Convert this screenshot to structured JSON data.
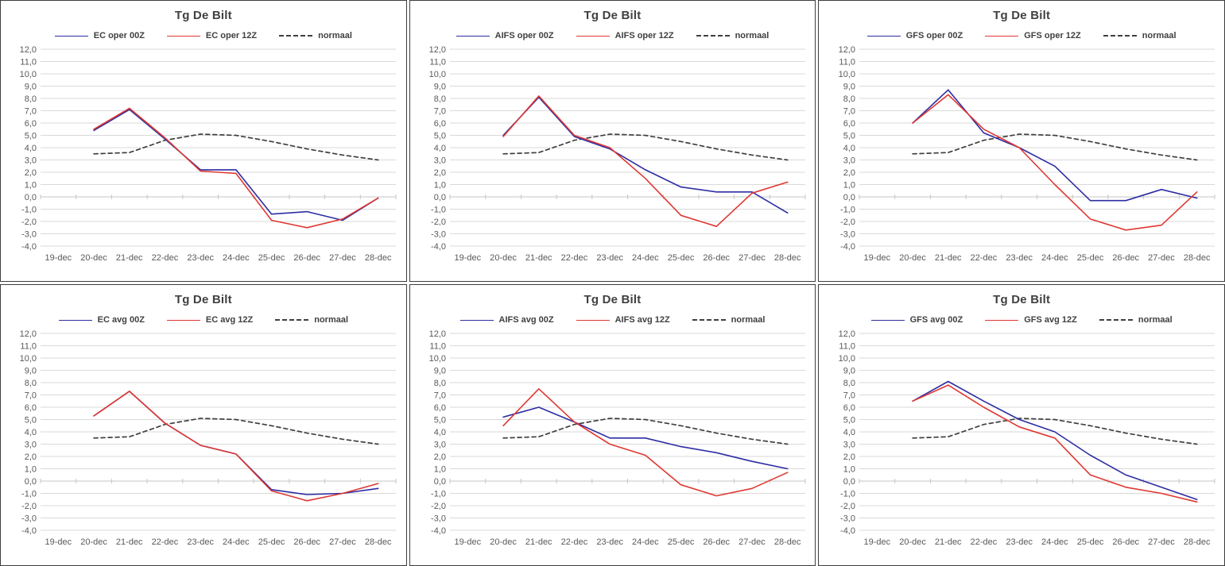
{
  "colors": {
    "series_00z": "#2D2DA3",
    "series_12z": "#DF3832",
    "normaal": "#404040",
    "gridline": "#D9D9D9",
    "zero_line": "#C6C6C6",
    "tick_text": "#595959",
    "title_text": "#404040",
    "panel_border": "#3D3D3D"
  },
  "chart_data": [
    {
      "id": "ec-oper",
      "type": "line",
      "title": "Tg De Bilt",
      "categories": [
        "19-dec",
        "20-dec",
        "21-dec",
        "22-dec",
        "23-dec",
        "24-dec",
        "25-dec",
        "26-dec",
        "27-dec",
        "28-dec"
      ],
      "ylim": [
        -4,
        12
      ],
      "ytick_step": 1.0,
      "grid": true,
      "legend_position": "top",
      "ytick_labels": [
        "12,0",
        "11,0",
        "10,0",
        "9,0",
        "8,0",
        "7,0",
        "6,0",
        "5,0",
        "4,0",
        "3,0",
        "2,0",
        "1,0",
        "0,0",
        "-1,0",
        "-2,0",
        "-3,0",
        "-4,0"
      ],
      "series": [
        {
          "name": "EC oper 00Z",
          "color": "#2D2DA3",
          "dash": false,
          "values": [
            null,
            5.4,
            7.1,
            4.7,
            2.2,
            2.2,
            -1.4,
            -1.2,
            -1.9,
            -0.1
          ]
        },
        {
          "name": "EC oper 12Z",
          "color": "#DF3832",
          "dash": false,
          "values": [
            null,
            5.5,
            7.2,
            4.8,
            2.1,
            1.9,
            -1.9,
            -2.5,
            -1.8,
            -0.1
          ]
        },
        {
          "name": "normaal",
          "color": "#404040",
          "dash": true,
          "values": [
            null,
            3.5,
            3.6,
            4.6,
            5.1,
            5.0,
            4.5,
            3.9,
            3.4,
            3.0
          ]
        }
      ]
    },
    {
      "id": "aifs-oper",
      "type": "line",
      "title": "Tg De Bilt",
      "categories": [
        "19-dec",
        "20-dec",
        "21-dec",
        "22-dec",
        "23-dec",
        "24-dec",
        "25-dec",
        "26-dec",
        "27-dec",
        "28-dec"
      ],
      "ylim": [
        -4,
        12
      ],
      "ytick_step": 1.0,
      "grid": true,
      "legend_position": "top",
      "ytick_labels": [
        "12,0",
        "11,0",
        "10,0",
        "9,0",
        "8,0",
        "7,0",
        "6,0",
        "5,0",
        "4,0",
        "3,0",
        "2,0",
        "1,0",
        "0,0",
        "-1,0",
        "-2,0",
        "-3,0",
        "-4,0"
      ],
      "series": [
        {
          "name": "AIFS oper 00Z",
          "color": "#2D2DA3",
          "dash": false,
          "values": [
            null,
            5.0,
            8.1,
            4.9,
            3.9,
            2.2,
            0.8,
            0.4,
            0.4,
            -1.3
          ]
        },
        {
          "name": "AIFS oper 12Z",
          "color": "#DF3832",
          "dash": false,
          "values": [
            null,
            4.9,
            8.2,
            5.0,
            4.0,
            1.5,
            -1.5,
            -2.4,
            0.3,
            1.2
          ]
        },
        {
          "name": "normaal",
          "color": "#404040",
          "dash": true,
          "values": [
            null,
            3.5,
            3.6,
            4.6,
            5.1,
            5.0,
            4.5,
            3.9,
            3.4,
            3.0
          ]
        }
      ]
    },
    {
      "id": "gfs-oper",
      "type": "line",
      "title": "Tg De Bilt",
      "categories": [
        "19-dec",
        "20-dec",
        "21-dec",
        "22-dec",
        "23-dec",
        "24-dec",
        "25-dec",
        "26-dec",
        "27-dec",
        "28-dec"
      ],
      "ylim": [
        -4,
        12
      ],
      "ytick_step": 1.0,
      "grid": true,
      "legend_position": "top",
      "ytick_labels": [
        "12,0",
        "11,0",
        "10,0",
        "9,0",
        "8,0",
        "7,0",
        "6,0",
        "5,0",
        "4,0",
        "3,0",
        "2,0",
        "1,0",
        "0,0",
        "-1,0",
        "-2,0",
        "-3,0",
        "-4,0"
      ],
      "series": [
        {
          "name": "GFS oper 00Z",
          "color": "#2D2DA3",
          "dash": false,
          "values": [
            null,
            6.0,
            8.7,
            5.2,
            4.0,
            2.5,
            -0.3,
            -0.3,
            0.6,
            -0.1
          ]
        },
        {
          "name": "GFS oper 12Z",
          "color": "#DF3832",
          "dash": false,
          "values": [
            null,
            6.0,
            8.3,
            5.5,
            4.0,
            1.0,
            -1.8,
            -2.7,
            -2.3,
            0.4
          ]
        },
        {
          "name": "normaal",
          "color": "#404040",
          "dash": true,
          "values": [
            null,
            3.5,
            3.6,
            4.6,
            5.1,
            5.0,
            4.5,
            3.9,
            3.4,
            3.0
          ]
        }
      ]
    },
    {
      "id": "ec-avg",
      "type": "line",
      "title": "Tg De Bilt",
      "categories": [
        "19-dec",
        "20-dec",
        "21-dec",
        "22-dec",
        "23-dec",
        "24-dec",
        "25-dec",
        "26-dec",
        "27-dec",
        "28-dec"
      ],
      "ylim": [
        -4,
        12
      ],
      "ytick_step": 1.0,
      "grid": true,
      "legend_position": "top",
      "ytick_labels": [
        "12,0",
        "11,0",
        "10,0",
        "9,0",
        "8,0",
        "7,0",
        "6,0",
        "5,0",
        "4,0",
        "3,0",
        "2,0",
        "1,0",
        "0,0",
        "-1,0",
        "-2,0",
        "-3,0",
        "-4,0"
      ],
      "series": [
        {
          "name": "EC avg 00Z",
          "color": "#2D2DA3",
          "dash": false,
          "values": [
            null,
            5.3,
            7.3,
            4.7,
            2.9,
            2.2,
            -0.7,
            -1.1,
            -1.0,
            -0.6
          ]
        },
        {
          "name": "EC avg 12Z",
          "color": "#DF3832",
          "dash": false,
          "values": [
            null,
            5.3,
            7.3,
            4.7,
            2.9,
            2.2,
            -0.8,
            -1.6,
            -1.0,
            -0.2
          ]
        },
        {
          "name": "normaal",
          "color": "#404040",
          "dash": true,
          "values": [
            null,
            3.5,
            3.6,
            4.6,
            5.1,
            5.0,
            4.5,
            3.9,
            3.4,
            3.0
          ]
        }
      ]
    },
    {
      "id": "aifs-avg",
      "type": "line",
      "title": "Tg De Bilt",
      "categories": [
        "19-dec",
        "20-dec",
        "21-dec",
        "22-dec",
        "23-dec",
        "24-dec",
        "25-dec",
        "26-dec",
        "27-dec",
        "28-dec"
      ],
      "ylim": [
        -4,
        12
      ],
      "ytick_step": 1.0,
      "grid": true,
      "legend_position": "top",
      "ytick_labels": [
        "12,0",
        "11,0",
        "10,0",
        "9,0",
        "8,0",
        "7,0",
        "6,0",
        "5,0",
        "4,0",
        "3,0",
        "2,0",
        "1,0",
        "0,0",
        "-1,0",
        "-2,0",
        "-3,0",
        "-4,0"
      ],
      "series": [
        {
          "name": "AIFS avg 00Z",
          "color": "#2D2DA3",
          "dash": false,
          "values": [
            null,
            5.2,
            6.0,
            4.8,
            3.5,
            3.5,
            2.8,
            2.3,
            1.6,
            1.0
          ]
        },
        {
          "name": "AIFS avg 12Z",
          "color": "#DF3832",
          "dash": false,
          "values": [
            null,
            4.5,
            7.5,
            4.8,
            3.0,
            2.1,
            -0.3,
            -1.2,
            -0.6,
            0.7
          ]
        },
        {
          "name": "normaal",
          "color": "#404040",
          "dash": true,
          "values": [
            null,
            3.5,
            3.6,
            4.6,
            5.1,
            5.0,
            4.5,
            3.9,
            3.4,
            3.0
          ]
        }
      ]
    },
    {
      "id": "gfs-avg",
      "type": "line",
      "title": "Tg De Bilt",
      "categories": [
        "19-dec",
        "20-dec",
        "21-dec",
        "22-dec",
        "23-dec",
        "24-dec",
        "25-dec",
        "26-dec",
        "27-dec",
        "28-dec"
      ],
      "ylim": [
        -4,
        12
      ],
      "ytick_step": 1.0,
      "grid": true,
      "legend_position": "top",
      "ytick_labels": [
        "12,0",
        "11,0",
        "10,0",
        "9,0",
        "8,0",
        "7,0",
        "6,0",
        "5,0",
        "4,0",
        "3,0",
        "2,0",
        "1,0",
        "0,0",
        "-1,0",
        "-2,0",
        "-3,0",
        "-4,0"
      ],
      "series": [
        {
          "name": "GFS avg 00Z",
          "color": "#2D2DA3",
          "dash": false,
          "values": [
            null,
            6.5,
            8.1,
            6.5,
            5.0,
            4.0,
            2.1,
            0.5,
            -0.5,
            -1.5
          ]
        },
        {
          "name": "GFS avg 12Z",
          "color": "#DF3832",
          "dash": false,
          "values": [
            null,
            6.5,
            7.8,
            6.0,
            4.4,
            3.5,
            0.5,
            -0.5,
            -1.0,
            -1.7
          ]
        },
        {
          "name": "normaal",
          "color": "#404040",
          "dash": true,
          "values": [
            null,
            3.5,
            3.6,
            4.6,
            5.1,
            5.0,
            4.5,
            3.9,
            3.4,
            3.0
          ]
        }
      ]
    }
  ]
}
